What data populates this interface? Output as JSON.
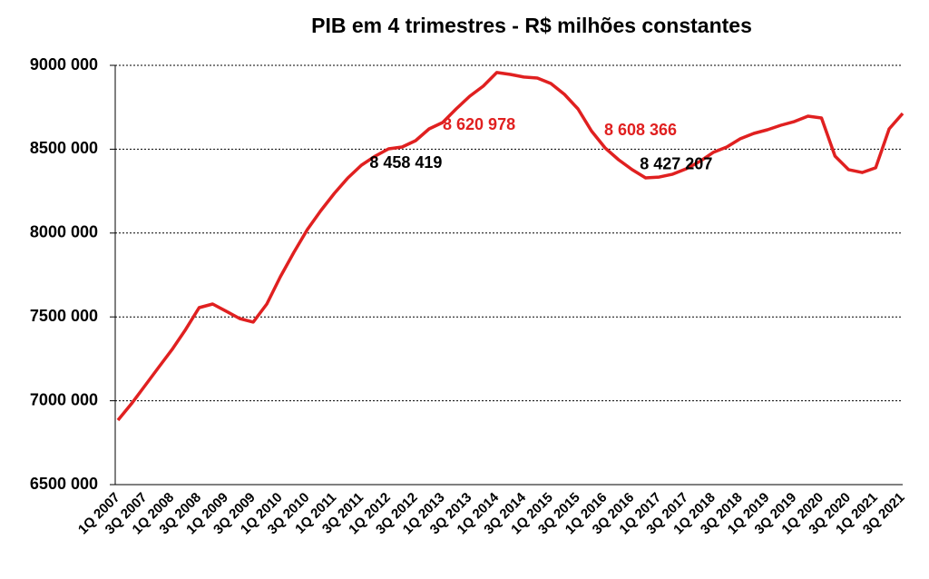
{
  "chart_data": {
    "type": "line",
    "title": "PIB  em 4 trimestres - R$ milhões constantes",
    "categories": [
      "1Q 2007",
      null,
      "3Q 2007",
      null,
      "1Q 2008",
      null,
      "3Q 2008",
      null,
      "1Q 2009",
      null,
      "3Q 2009",
      null,
      "1Q 2010",
      null,
      "3Q 2010",
      null,
      "1Q 2011",
      null,
      "3Q 2011",
      null,
      "1Q 2012",
      null,
      "3Q 2012",
      null,
      "1Q 2013",
      null,
      "3Q 2013",
      null,
      "1Q 2014",
      null,
      "3Q 2014",
      null,
      "1Q 2015",
      null,
      "3Q 2015",
      null,
      "1Q 2016",
      null,
      "3Q 2016",
      null,
      "1Q 2017",
      null,
      "3Q 2017",
      null,
      "1Q 2018",
      null,
      "3Q 2018",
      null,
      "1Q 2019",
      null,
      "3Q 2019",
      null,
      "1Q 2020",
      null,
      "3Q 2020",
      null,
      "1Q 2021",
      null,
      "3Q 2021"
    ],
    "color": "#e02020",
    "values": [
      6884000,
      6982000,
      7090000,
      7198000,
      7306000,
      7425000,
      7555000,
      7577000,
      7534000,
      7490000,
      7469000,
      7577000,
      7739000,
      7885000,
      8021000,
      8134000,
      8237000,
      8329000,
      8405000,
      8458419,
      8502000,
      8513000,
      8551000,
      8620978,
      8659000,
      8740000,
      8816000,
      8876000,
      8957000,
      8946000,
      8930000,
      8924000,
      8892000,
      8827000,
      8740000,
      8608366,
      8508000,
      8437000,
      8378000,
      8329000,
      8334000,
      8351000,
      8383000,
      8427207,
      8481000,
      8513000,
      8562000,
      8594000,
      8616000,
      8643000,
      8665000,
      8697000,
      8686000,
      8459000,
      8378000,
      8361000,
      8389000,
      8621000,
      8713000
    ],
    "value_labels": [
      null,
      null,
      null,
      null,
      null,
      null,
      null,
      null,
      null,
      null,
      null,
      null,
      null,
      null,
      null,
      null,
      null,
      null,
      null,
      "8 458 419",
      null,
      null,
      null,
      "8 620 978",
      null,
      null,
      null,
      null,
      null,
      null,
      null,
      null,
      null,
      null,
      null,
      "8 608 366",
      null,
      null,
      null,
      null,
      null,
      null,
      null,
      "8 427 207",
      null,
      null,
      null,
      null,
      null,
      null,
      null,
      null,
      null,
      null,
      null,
      null,
      null,
      null,
      null
    ],
    "value_label_colors": [
      null,
      null,
      null,
      null,
      null,
      null,
      null,
      null,
      null,
      null,
      null,
      null,
      null,
      null,
      null,
      null,
      null,
      null,
      null,
      "#000000",
      null,
      null,
      null,
      "#e02020",
      null,
      null,
      null,
      null,
      null,
      null,
      null,
      null,
      null,
      null,
      null,
      "#e02020",
      null,
      null,
      null,
      null,
      null,
      null,
      null,
      "#000000",
      null,
      null,
      null,
      null,
      null,
      null,
      null,
      null,
      null,
      null,
      null,
      null,
      null,
      null,
      null
    ],
    "ylim": [
      6500000,
      9000000
    ],
    "yticks": [
      {
        "value": 6500000,
        "label": "6500 000"
      },
      {
        "value": 7000000,
        "label": "7000 000"
      },
      {
        "value": 7500000,
        "label": "7500 000"
      },
      {
        "value": 8000000,
        "label": "8000 000"
      },
      {
        "value": 8500000,
        "label": "8500 000"
      },
      {
        "value": 9000000,
        "label": "9000 000"
      }
    ],
    "grid": true
  }
}
